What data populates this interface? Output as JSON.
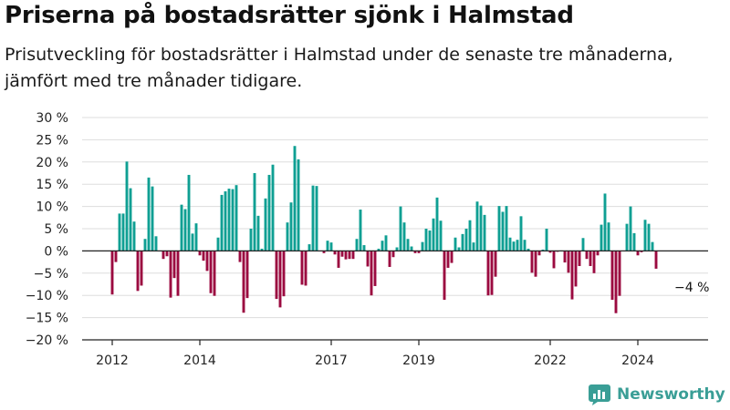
{
  "header": {
    "title": "Priserna på bostadsrätter sjönk i Halmstad",
    "subtitle": "Prisutveckling för bostadsrätter i Halmstad under de senaste tre månaderna, jämfört med tre månader tidigare."
  },
  "brand": {
    "name": "Newsworthy",
    "icon": "newsworthy-logo-icon",
    "color": "#3a9e96"
  },
  "colors": {
    "positive": "#0f9f93",
    "negative": "#9b0a40",
    "grid": "#dddddd",
    "axis": "#222222"
  },
  "chart_data": {
    "type": "bar",
    "title": "Priserna på bostadsrätter sjönk i Halmstad",
    "subtitle": "Prisutveckling för bostadsrätter i Halmstad under de senaste tre månaderna, jämfört med tre månader tidigare.",
    "xlabel": "",
    "ylabel": "",
    "unit": "%",
    "ylim": [
      -20,
      30
    ],
    "y_ticks": [
      {
        "value": 30,
        "label": "30 %"
      },
      {
        "value": 25,
        "label": "25 %"
      },
      {
        "value": 20,
        "label": "20 %"
      },
      {
        "value": 15,
        "label": "15 %"
      },
      {
        "value": 10,
        "label": "10 %"
      },
      {
        "value": 5,
        "label": "5 %"
      },
      {
        "value": 0,
        "label": "0 %"
      },
      {
        "value": -5,
        "label": "−5 %"
      },
      {
        "value": -10,
        "label": "−10 %"
      },
      {
        "value": -15,
        "label": "−15 %"
      },
      {
        "value": -20,
        "label": "−20 %"
      }
    ],
    "x_ticks": [
      {
        "month": "2012-01",
        "label": "2012"
      },
      {
        "month": "2014-01",
        "label": "2014"
      },
      {
        "month": "2017-01",
        "label": "2017"
      },
      {
        "month": "2019-01",
        "label": "2019"
      },
      {
        "month": "2022-01",
        "label": "2022"
      },
      {
        "month": "2024-01",
        "label": "2024"
      }
    ],
    "grid": true,
    "legend": "none",
    "annotation": {
      "month": "2024-09",
      "label": "−4 %"
    },
    "start_month": "2012-01",
    "values": [
      -9.8,
      -2.5,
      8.4,
      8.4,
      20.1,
      14.1,
      6.6,
      -9.0,
      -7.8,
      2.7,
      16.5,
      14.5,
      3.3,
      0.0,
      -1.8,
      -1.2,
      -10.5,
      -6.1,
      -10.1,
      10.4,
      9.4,
      17.1,
      3.9,
      6.2,
      -1.0,
      -2.2,
      -4.5,
      -9.5,
      -10.1,
      3.0,
      12.6,
      13.4,
      14.0,
      13.9,
      14.8,
      -2.5,
      -13.9,
      -10.6,
      5.0,
      17.5,
      7.9,
      0.5,
      11.8,
      17.1,
      19.4,
      -10.8,
      -12.7,
      -10.2,
      6.4,
      10.9,
      23.6,
      20.6,
      -7.6,
      -7.8,
      1.5,
      14.7,
      14.6,
      0.0,
      -0.5,
      2.3,
      1.9,
      -0.8,
      -3.8,
      -1.3,
      -1.9,
      -1.8,
      -1.8,
      2.7,
      9.3,
      1.3,
      -3.5,
      -10.0,
      -7.9,
      0.5,
      2.3,
      3.5,
      -3.6,
      -1.4,
      0.8,
      10.0,
      6.4,
      2.7,
      1.0,
      -0.5,
      -0.5,
      2.0,
      5.0,
      4.6,
      7.3,
      12.0,
      6.8,
      -11.0,
      -3.8,
      -2.7,
      3.0,
      0.8,
      3.8,
      5.0,
      6.9,
      1.9,
      11.1,
      10.2,
      8.1,
      -10.0,
      -9.9,
      -5.8,
      10.1,
      8.8,
      10.1,
      3.0,
      2.1,
      2.5,
      7.8,
      2.5,
      0.5,
      -4.9,
      -5.8,
      -1.0,
      0.3,
      5.0,
      -0.4,
      -3.9,
      -0.2,
      0.1,
      -2.6,
      -4.9,
      -10.9,
      -8.0,
      -3.4,
      2.9,
      -1.8,
      -3.4,
      -5.0,
      -1.0,
      5.9,
      12.9,
      6.4,
      -11.0,
      -14.0,
      -10.1,
      -0.1,
      6.1,
      10.0,
      4.0,
      -1.0,
      -0.3,
      7.0,
      6.1,
      2.0,
      -4.0
    ]
  }
}
